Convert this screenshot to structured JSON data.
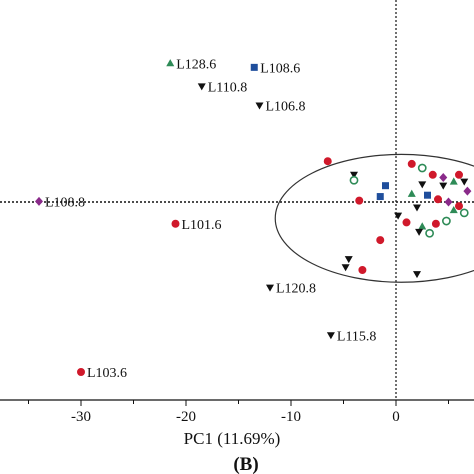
{
  "chart_data": {
    "type": "scatter",
    "xlabel": "PC1 (11.69%)",
    "panel_label": "(B)",
    "xlim": [
      -36,
      7
    ],
    "ylim": [
      -7.5,
      13.2
    ],
    "x_ticks": [
      {
        "value": -30,
        "label": "-30"
      },
      {
        "value": -20,
        "label": "-20"
      },
      {
        "value": -10,
        "label": "-10"
      },
      {
        "value": 0,
        "label": "0"
      }
    ],
    "reference_lines": {
      "x": 0,
      "y": 0
    },
    "confidence_ellipse": {
      "cx": 0.5,
      "cy": -1.2,
      "rx": 12,
      "ry": 4.7
    },
    "colors": {
      "red": "#d0192b",
      "green": "#2e8b57",
      "blue": "#1f4e9c",
      "black": "#111111",
      "purple": "#8a2a8a"
    },
    "labeled_points": [
      {
        "label": "L128.6",
        "x": -21.5,
        "y": 10.2,
        "marker": "triangle-up",
        "color": "green"
      },
      {
        "label": "L108.6",
        "x": -13.5,
        "y": 9.9,
        "marker": "square",
        "color": "blue"
      },
      {
        "label": "L110.8",
        "x": -18.5,
        "y": 8.5,
        "marker": "triangle-down",
        "color": "black"
      },
      {
        "label": "L106.8",
        "x": -13,
        "y": 7.1,
        "marker": "triangle-down",
        "color": "black"
      },
      {
        "label": "L108.8",
        "x": -34,
        "y": 0.05,
        "marker": "diamond",
        "color": "purple"
      },
      {
        "label": "L101.6",
        "x": -21,
        "y": -1.6,
        "marker": "circle",
        "color": "red"
      },
      {
        "label": "L120.8",
        "x": -12,
        "y": -6.3,
        "marker": "triangle-down",
        "color": "black"
      },
      {
        "label": "L115.8",
        "x": -6.2,
        "y": -9.8,
        "marker": "triangle-down",
        "color": "black"
      },
      {
        "label": "L103.6",
        "x": -30,
        "y": -12.5,
        "marker": "circle",
        "color": "red"
      }
    ],
    "cluster_points": [
      {
        "x": -6.5,
        "y": 3.0,
        "marker": "circle",
        "color": "red"
      },
      {
        "x": -4.0,
        "y": 2.0,
        "marker": "triangle-down",
        "color": "black"
      },
      {
        "x": -4.0,
        "y": 1.6,
        "marker": "circle",
        "color": "green"
      },
      {
        "x": -1.0,
        "y": 1.2,
        "marker": "square",
        "color": "blue"
      },
      {
        "x": -3.5,
        "y": 0.1,
        "marker": "circle",
        "color": "red"
      },
      {
        "x": -1.5,
        "y": 0.4,
        "marker": "square",
        "color": "blue"
      },
      {
        "x": 1.5,
        "y": 2.8,
        "marker": "circle",
        "color": "red"
      },
      {
        "x": 2.5,
        "y": 2.5,
        "marker": "circle",
        "color": "green"
      },
      {
        "x": 3.5,
        "y": 2.0,
        "marker": "circle",
        "color": "red"
      },
      {
        "x": 4.5,
        "y": 1.8,
        "marker": "diamond",
        "color": "purple"
      },
      {
        "x": 5.5,
        "y": 1.5,
        "marker": "triangle-up",
        "color": "green"
      },
      {
        "x": 6.0,
        "y": 2.0,
        "marker": "circle",
        "color": "red"
      },
      {
        "x": 6.5,
        "y": 1.5,
        "marker": "triangle-down",
        "color": "black"
      },
      {
        "x": 6.8,
        "y": 0.8,
        "marker": "diamond",
        "color": "purple"
      },
      {
        "x": 2.5,
        "y": 1.3,
        "marker": "triangle-down",
        "color": "black"
      },
      {
        "x": 4.5,
        "y": 1.2,
        "marker": "triangle-down",
        "color": "black"
      },
      {
        "x": 1.5,
        "y": 0.6,
        "marker": "triangle-up",
        "color": "green"
      },
      {
        "x": 3.0,
        "y": 0.5,
        "marker": "square",
        "color": "blue"
      },
      {
        "x": 4.0,
        "y": 0.2,
        "marker": "circle",
        "color": "red"
      },
      {
        "x": 5.0,
        "y": 0.0,
        "marker": "diamond",
        "color": "purple"
      },
      {
        "x": 6.0,
        "y": -0.3,
        "marker": "circle",
        "color": "red"
      },
      {
        "x": 5.5,
        "y": -0.6,
        "marker": "triangle-up",
        "color": "green"
      },
      {
        "x": 6.5,
        "y": -0.8,
        "marker": "circle",
        "color": "green"
      },
      {
        "x": 2.0,
        "y": -0.4,
        "marker": "triangle-down",
        "color": "black"
      },
      {
        "x": 0.2,
        "y": -1.0,
        "marker": "triangle-down",
        "color": "black"
      },
      {
        "x": 1.0,
        "y": -1.5,
        "marker": "circle",
        "color": "red"
      },
      {
        "x": 2.5,
        "y": -1.8,
        "marker": "triangle-up",
        "color": "green"
      },
      {
        "x": 3.8,
        "y": -1.6,
        "marker": "circle",
        "color": "red"
      },
      {
        "x": 4.8,
        "y": -1.4,
        "marker": "circle",
        "color": "green"
      },
      {
        "x": 3.2,
        "y": -2.3,
        "marker": "circle",
        "color": "green"
      },
      {
        "x": 2.2,
        "y": -2.2,
        "marker": "triangle-down",
        "color": "black"
      },
      {
        "x": -1.5,
        "y": -2.8,
        "marker": "circle",
        "color": "red"
      },
      {
        "x": -4.5,
        "y": -4.2,
        "marker": "triangle-down",
        "color": "black"
      },
      {
        "x": -4.8,
        "y": -4.8,
        "marker": "triangle-down",
        "color": "black"
      },
      {
        "x": -3.2,
        "y": -5.0,
        "marker": "circle",
        "color": "red"
      },
      {
        "x": 2.0,
        "y": -5.3,
        "marker": "triangle-down",
        "color": "black"
      }
    ]
  }
}
